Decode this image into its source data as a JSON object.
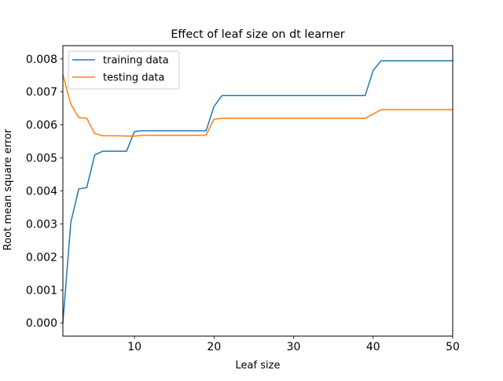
{
  "chart_data": {
    "type": "line",
    "title": "Effect of leaf size on dt learner",
    "xlabel": "Leaf size",
    "ylabel": "Root mean square error",
    "xlim": [
      1,
      50
    ],
    "ylim": [
      -0.0004,
      0.0084
    ],
    "x_ticks": [
      10,
      20,
      30,
      40,
      50
    ],
    "x_tick_labels": [
      "10",
      "20",
      "30",
      "40",
      "50"
    ],
    "y_ticks": [
      0.0,
      0.001,
      0.002,
      0.003,
      0.004,
      0.005,
      0.006,
      0.007,
      0.008
    ],
    "y_tick_labels": [
      "0.000",
      "0.001",
      "0.002",
      "0.003",
      "0.004",
      "0.005",
      "0.006",
      "0.007",
      "0.008"
    ],
    "grid": false,
    "legend": "top-left",
    "x": [
      1,
      2,
      3,
      4,
      5,
      6,
      7,
      8,
      9,
      10,
      11,
      12,
      13,
      14,
      15,
      16,
      17,
      18,
      19,
      20,
      21,
      22,
      23,
      24,
      25,
      26,
      27,
      28,
      29,
      30,
      31,
      32,
      33,
      34,
      35,
      36,
      37,
      38,
      39,
      40,
      41,
      42,
      43,
      44,
      45,
      46,
      47,
      48,
      49,
      50
    ],
    "series": [
      {
        "name": "training data",
        "color": "#1f77b4",
        "values": [
          0.0,
          0.00305,
          0.00406,
          0.0041,
          0.00509,
          0.0052,
          0.0052,
          0.0052,
          0.0052,
          0.0058,
          0.00582,
          0.00582,
          0.00582,
          0.00582,
          0.00582,
          0.00582,
          0.00582,
          0.00582,
          0.00582,
          0.00656,
          0.00689,
          0.00689,
          0.00689,
          0.00689,
          0.00689,
          0.00689,
          0.00689,
          0.00689,
          0.00689,
          0.00689,
          0.00689,
          0.00689,
          0.00689,
          0.00689,
          0.00689,
          0.00689,
          0.00689,
          0.00689,
          0.00689,
          0.00765,
          0.00794,
          0.00794,
          0.00794,
          0.00794,
          0.00794,
          0.00794,
          0.00794,
          0.00794,
          0.00794,
          0.00794
        ]
      },
      {
        "name": "testing data",
        "color": "#ff7f0e",
        "values": [
          0.00752,
          0.00663,
          0.00622,
          0.0062,
          0.00574,
          0.00567,
          0.00567,
          0.00567,
          0.00566,
          0.00566,
          0.00568,
          0.00568,
          0.00568,
          0.00568,
          0.00568,
          0.00568,
          0.00568,
          0.00568,
          0.00569,
          0.00617,
          0.0062,
          0.0062,
          0.0062,
          0.0062,
          0.0062,
          0.0062,
          0.0062,
          0.0062,
          0.0062,
          0.0062,
          0.0062,
          0.0062,
          0.0062,
          0.0062,
          0.0062,
          0.0062,
          0.0062,
          0.0062,
          0.0062,
          0.00633,
          0.00646,
          0.00646,
          0.00646,
          0.00646,
          0.00646,
          0.00646,
          0.00646,
          0.00646,
          0.00646,
          0.00646
        ]
      }
    ]
  }
}
